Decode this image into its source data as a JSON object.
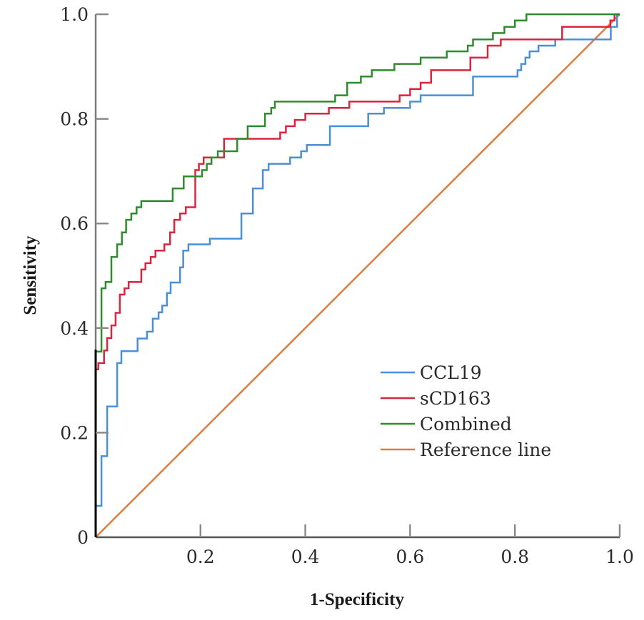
{
  "chart_data": {
    "type": "line",
    "subtype": "ROC step curves",
    "title": "",
    "xlabel": "1-Specificity",
    "ylabel": "Sensitivity",
    "xlim": [
      0,
      1.0
    ],
    "ylim": [
      0,
      1.0
    ],
    "x_ticks": [
      0.2,
      0.4,
      0.6,
      0.8,
      1.0
    ],
    "x_tick_labels": [
      "0.2",
      "0.4",
      "0.6",
      "0.8",
      "1.0"
    ],
    "y_ticks": [
      0,
      0.2,
      0.4,
      0.6,
      0.8,
      1.0
    ],
    "y_tick_labels": [
      "0",
      "0.2",
      "0.4",
      "0.6",
      "0.8",
      "1.0"
    ],
    "grid": false,
    "legend_position": "bottom-right",
    "series": [
      {
        "name": "CCL19",
        "color": "#4a90d9",
        "points": [
          [
            0,
            0
          ],
          [
            0,
            0.06
          ],
          [
            0.011,
            0.06
          ],
          [
            0.011,
            0.155
          ],
          [
            0.022,
            0.155
          ],
          [
            0.022,
            0.25
          ],
          [
            0.041,
            0.25
          ],
          [
            0.041,
            0.333
          ],
          [
            0.049,
            0.333
          ],
          [
            0.049,
            0.356
          ],
          [
            0.08,
            0.356
          ],
          [
            0.08,
            0.38
          ],
          [
            0.098,
            0.38
          ],
          [
            0.098,
            0.393
          ],
          [
            0.109,
            0.393
          ],
          [
            0.109,
            0.418
          ],
          [
            0.12,
            0.418
          ],
          [
            0.12,
            0.43
          ],
          [
            0.127,
            0.43
          ],
          [
            0.127,
            0.443
          ],
          [
            0.136,
            0.443
          ],
          [
            0.136,
            0.467
          ],
          [
            0.143,
            0.467
          ],
          [
            0.143,
            0.487
          ],
          [
            0.161,
            0.487
          ],
          [
            0.161,
            0.516
          ],
          [
            0.167,
            0.516
          ],
          [
            0.167,
            0.548
          ],
          [
            0.177,
            0.548
          ],
          [
            0.177,
            0.56
          ],
          [
            0.218,
            0.56
          ],
          [
            0.218,
            0.571
          ],
          [
            0.278,
            0.571
          ],
          [
            0.278,
            0.619
          ],
          [
            0.3,
            0.619
          ],
          [
            0.3,
            0.667
          ],
          [
            0.319,
            0.667
          ],
          [
            0.319,
            0.702
          ],
          [
            0.33,
            0.702
          ],
          [
            0.33,
            0.714
          ],
          [
            0.371,
            0.714
          ],
          [
            0.371,
            0.726
          ],
          [
            0.392,
            0.726
          ],
          [
            0.392,
            0.738
          ],
          [
            0.403,
            0.738
          ],
          [
            0.403,
            0.75
          ],
          [
            0.447,
            0.75
          ],
          [
            0.447,
            0.786
          ],
          [
            0.52,
            0.786
          ],
          [
            0.52,
            0.81
          ],
          [
            0.55,
            0.81
          ],
          [
            0.55,
            0.821
          ],
          [
            0.6,
            0.821
          ],
          [
            0.6,
            0.833
          ],
          [
            0.62,
            0.833
          ],
          [
            0.62,
            0.845
          ],
          [
            0.72,
            0.845
          ],
          [
            0.72,
            0.881
          ],
          [
            0.805,
            0.881
          ],
          [
            0.805,
            0.893
          ],
          [
            0.812,
            0.893
          ],
          [
            0.812,
            0.905
          ],
          [
            0.82,
            0.905
          ],
          [
            0.82,
            0.917
          ],
          [
            0.828,
            0.917
          ],
          [
            0.828,
            0.929
          ],
          [
            0.845,
            0.929
          ],
          [
            0.845,
            0.94
          ],
          [
            0.877,
            0.94
          ],
          [
            0.877,
            0.952
          ],
          [
            0.983,
            0.952
          ],
          [
            0.983,
            0.976
          ],
          [
            0.995,
            0.976
          ],
          [
            0.995,
            1.0
          ],
          [
            1.0,
            1.0
          ]
        ]
      },
      {
        "name": "sCD163",
        "color": "#d7263d",
        "points": [
          [
            0,
            0
          ],
          [
            0,
            0.321
          ],
          [
            0.005,
            0.321
          ],
          [
            0.005,
            0.333
          ],
          [
            0.016,
            0.333
          ],
          [
            0.016,
            0.357
          ],
          [
            0.022,
            0.357
          ],
          [
            0.022,
            0.381
          ],
          [
            0.03,
            0.381
          ],
          [
            0.03,
            0.405
          ],
          [
            0.038,
            0.405
          ],
          [
            0.038,
            0.429
          ],
          [
            0.046,
            0.429
          ],
          [
            0.046,
            0.464
          ],
          [
            0.055,
            0.464
          ],
          [
            0.055,
            0.476
          ],
          [
            0.063,
            0.476
          ],
          [
            0.063,
            0.488
          ],
          [
            0.087,
            0.488
          ],
          [
            0.087,
            0.512
          ],
          [
            0.095,
            0.512
          ],
          [
            0.095,
            0.524
          ],
          [
            0.105,
            0.524
          ],
          [
            0.105,
            0.536
          ],
          [
            0.114,
            0.536
          ],
          [
            0.114,
            0.548
          ],
          [
            0.131,
            0.548
          ],
          [
            0.131,
            0.56
          ],
          [
            0.142,
            0.56
          ],
          [
            0.142,
            0.583
          ],
          [
            0.15,
            0.583
          ],
          [
            0.15,
            0.607
          ],
          [
            0.161,
            0.607
          ],
          [
            0.161,
            0.619
          ],
          [
            0.172,
            0.619
          ],
          [
            0.172,
            0.631
          ],
          [
            0.19,
            0.631
          ],
          [
            0.19,
            0.702
          ],
          [
            0.197,
            0.702
          ],
          [
            0.197,
            0.714
          ],
          [
            0.206,
            0.714
          ],
          [
            0.206,
            0.726
          ],
          [
            0.245,
            0.726
          ],
          [
            0.245,
            0.762
          ],
          [
            0.352,
            0.762
          ],
          [
            0.352,
            0.774
          ],
          [
            0.363,
            0.774
          ],
          [
            0.363,
            0.786
          ],
          [
            0.38,
            0.786
          ],
          [
            0.38,
            0.798
          ],
          [
            0.4,
            0.798
          ],
          [
            0.4,
            0.81
          ],
          [
            0.445,
            0.81
          ],
          [
            0.445,
            0.821
          ],
          [
            0.484,
            0.821
          ],
          [
            0.484,
            0.833
          ],
          [
            0.58,
            0.833
          ],
          [
            0.58,
            0.845
          ],
          [
            0.6,
            0.845
          ],
          [
            0.6,
            0.857
          ],
          [
            0.62,
            0.857
          ],
          [
            0.62,
            0.869
          ],
          [
            0.64,
            0.869
          ],
          [
            0.64,
            0.893
          ],
          [
            0.715,
            0.893
          ],
          [
            0.715,
            0.917
          ],
          [
            0.748,
            0.917
          ],
          [
            0.748,
            0.94
          ],
          [
            0.773,
            0.94
          ],
          [
            0.773,
            0.952
          ],
          [
            0.89,
            0.952
          ],
          [
            0.89,
            0.976
          ],
          [
            0.982,
            0.976
          ],
          [
            0.982,
            0.988
          ],
          [
            0.99,
            0.988
          ],
          [
            0.99,
            1.0
          ],
          [
            1.0,
            1.0
          ]
        ]
      },
      {
        "name": "Combined",
        "color": "#2e8b2e",
        "points": [
          [
            0,
            0
          ],
          [
            0,
            0.355
          ],
          [
            0.011,
            0.355
          ],
          [
            0.011,
            0.476
          ],
          [
            0.019,
            0.476
          ],
          [
            0.019,
            0.488
          ],
          [
            0.03,
            0.488
          ],
          [
            0.03,
            0.536
          ],
          [
            0.041,
            0.536
          ],
          [
            0.041,
            0.56
          ],
          [
            0.05,
            0.56
          ],
          [
            0.05,
            0.583
          ],
          [
            0.058,
            0.583
          ],
          [
            0.058,
            0.607
          ],
          [
            0.068,
            0.607
          ],
          [
            0.068,
            0.619
          ],
          [
            0.078,
            0.619
          ],
          [
            0.078,
            0.631
          ],
          [
            0.087,
            0.631
          ],
          [
            0.087,
            0.643
          ],
          [
            0.147,
            0.643
          ],
          [
            0.147,
            0.667
          ],
          [
            0.168,
            0.667
          ],
          [
            0.168,
            0.69
          ],
          [
            0.203,
            0.69
          ],
          [
            0.203,
            0.702
          ],
          [
            0.212,
            0.702
          ],
          [
            0.212,
            0.714
          ],
          [
            0.221,
            0.714
          ],
          [
            0.221,
            0.726
          ],
          [
            0.233,
            0.726
          ],
          [
            0.233,
            0.738
          ],
          [
            0.27,
            0.738
          ],
          [
            0.27,
            0.762
          ],
          [
            0.29,
            0.762
          ],
          [
            0.29,
            0.786
          ],
          [
            0.323,
            0.786
          ],
          [
            0.323,
            0.81
          ],
          [
            0.335,
            0.81
          ],
          [
            0.335,
            0.821
          ],
          [
            0.342,
            0.821
          ],
          [
            0.342,
            0.833
          ],
          [
            0.457,
            0.833
          ],
          [
            0.457,
            0.845
          ],
          [
            0.48,
            0.845
          ],
          [
            0.48,
            0.869
          ],
          [
            0.506,
            0.869
          ],
          [
            0.506,
            0.881
          ],
          [
            0.527,
            0.881
          ],
          [
            0.527,
            0.893
          ],
          [
            0.57,
            0.893
          ],
          [
            0.57,
            0.905
          ],
          [
            0.62,
            0.905
          ],
          [
            0.62,
            0.917
          ],
          [
            0.67,
            0.917
          ],
          [
            0.67,
            0.929
          ],
          [
            0.71,
            0.929
          ],
          [
            0.71,
            0.94
          ],
          [
            0.72,
            0.94
          ],
          [
            0.72,
            0.952
          ],
          [
            0.758,
            0.952
          ],
          [
            0.758,
            0.964
          ],
          [
            0.78,
            0.964
          ],
          [
            0.78,
            0.976
          ],
          [
            0.8,
            0.976
          ],
          [
            0.8,
            0.988
          ],
          [
            0.822,
            0.988
          ],
          [
            0.822,
            1.0
          ],
          [
            1.0,
            1.0
          ]
        ]
      },
      {
        "name": "Reference line",
        "color": "#e07b39",
        "points": [
          [
            0,
            0
          ],
          [
            1.0,
            1.0
          ]
        ]
      }
    ]
  },
  "legend": {
    "items": [
      {
        "label": "CCL19",
        "color": "#4a90d9"
      },
      {
        "label": "sCD163",
        "color": "#d7263d"
      },
      {
        "label": "Combined",
        "color": "#2e8b2e"
      },
      {
        "label": "Reference line",
        "color": "#e07b39"
      }
    ]
  }
}
